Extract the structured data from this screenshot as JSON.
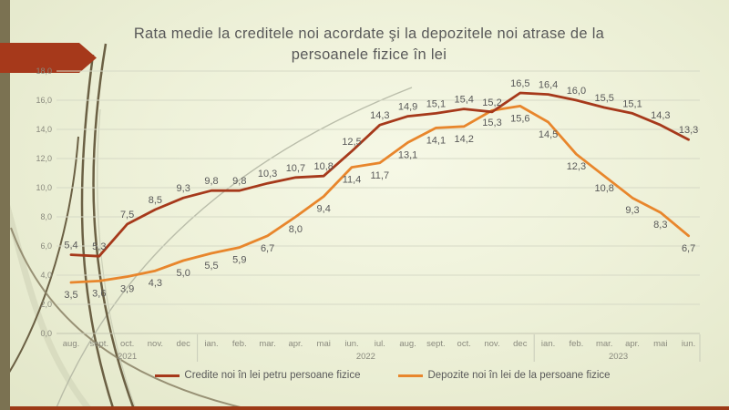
{
  "slide": {
    "title_line1": "Rata medie la creditele noi acordate şi la depozitele noi atrase de la",
    "title_line2": "persoanele fizice în lei"
  },
  "colors": {
    "accent_red": "#A6391B",
    "accent_orange": "#E8862C",
    "left_bar": "#7B7252",
    "bottom_strip": "#9C3A17",
    "text_gray": "#595959",
    "axis_gray": "#8A8A7E",
    "gridline": "#D6D9C6"
  },
  "chart_data": {
    "type": "line",
    "title": "Rata medie la creditele noi acordate şi la depozitele noi atrase de la persoanele fizice în lei",
    "categories": [
      "aug.",
      "sept.",
      "oct.",
      "nov.",
      "dec",
      "ian.",
      "feb.",
      "mar.",
      "apr.",
      "mai",
      "iun.",
      "iul.",
      "aug.",
      "sept.",
      "oct.",
      "nov.",
      "dec",
      "ian.",
      "feb.",
      "mar.",
      "apr.",
      "mai",
      "iun."
    ],
    "year_groups": [
      {
        "label": "2021",
        "start": 0,
        "end": 4
      },
      {
        "label": "2022",
        "start": 5,
        "end": 16
      },
      {
        "label": "2023",
        "start": 17,
        "end": 22
      }
    ],
    "series": [
      {
        "name": "Credite noi în lei petru persoane fizice",
        "color": "#A6391B",
        "label_position": "above",
        "values": [
          5.4,
          5.3,
          7.5,
          8.5,
          9.3,
          9.8,
          9.8,
          10.3,
          10.7,
          10.8,
          12.5,
          14.3,
          14.9,
          15.1,
          15.4,
          15.2,
          16.5,
          16.4,
          16.0,
          15.5,
          15.1,
          14.3,
          13.3
        ],
        "values_display": [
          "5,4",
          "5,3",
          "7,5",
          "8,5",
          "9,3",
          "9,8",
          "9,8",
          "10,3",
          "10,7",
          "10,8",
          "12,5",
          "14,3",
          "14,9",
          "15,1",
          "15,4",
          "15,2",
          "16,5",
          "16,4",
          "16,0",
          "15,5",
          "15,1",
          "14,3",
          "13,3"
        ]
      },
      {
        "name": "Depozite noi în lei de la persoane fizice",
        "color": "#E8862C",
        "label_position": "below",
        "values": [
          3.5,
          3.6,
          3.9,
          4.3,
          5.0,
          5.5,
          5.9,
          6.7,
          8.0,
          9.4,
          11.4,
          11.7,
          13.1,
          14.1,
          14.2,
          15.3,
          15.6,
          14.5,
          12.3,
          10.8,
          9.3,
          8.3,
          6.7
        ],
        "values_display": [
          "3,5",
          "3,6",
          "3,9",
          "4,3",
          "5,0",
          "5,5",
          "5,9",
          "6,7",
          "8,0",
          "9,4",
          "11,4",
          "11,7",
          "13,1",
          "14,1",
          "14,2",
          "15,3",
          "15,6",
          "14,5",
          "12,3",
          "10,8",
          "9,3",
          "8,3",
          "6,7"
        ]
      }
    ],
    "ylim": [
      0,
      18
    ],
    "ytick_step": 2,
    "ytick_labels": [
      "0,0",
      "2,0",
      "4,0",
      "6,0",
      "8,0",
      "10,0",
      "12,0",
      "14,0",
      "16,0",
      "18,0"
    ],
    "grid": true,
    "legend_position": "bottom",
    "decimal_separator": ","
  }
}
